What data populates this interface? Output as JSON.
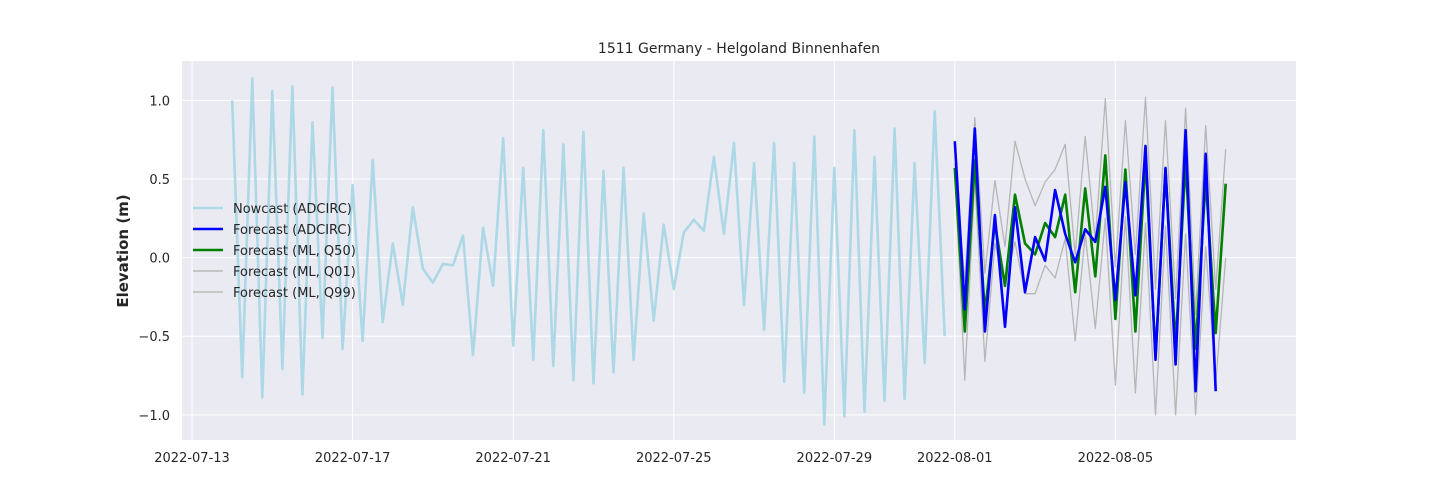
{
  "chart_data": {
    "type": "line",
    "title": "1511 Germany - Helgoland Binnenhafen",
    "xlabel": "",
    "ylabel": "Elevation (m)",
    "x_ticks": [
      {
        "date": "2022-07-13",
        "label": "2022-07-13"
      },
      {
        "date": "2022-07-17",
        "label": "2022-07-17"
      },
      {
        "date": "2022-07-21",
        "label": "2022-07-21"
      },
      {
        "date": "2022-07-25",
        "label": "2022-07-25"
      },
      {
        "date": "2022-07-29",
        "label": "2022-07-29"
      },
      {
        "date": "2022-08-01",
        "label": "2022-08-01"
      },
      {
        "date": "2022-08-05",
        "label": "2022-08-05"
      }
    ],
    "y_ticks": [
      1.0,
      0.5,
      0.0,
      -0.5,
      -1.0
    ],
    "y_tick_labels": [
      "1.0",
      "0.5",
      "0.0",
      "−0.5",
      "−1.0"
    ],
    "xlim": [
      "2022-07-12 18:00",
      "2022-08-09 12:00"
    ],
    "ylim": [
      -1.16,
      1.25
    ],
    "grid": true,
    "legend_position": "center-left",
    "colors": {
      "background": "#eaeaf2",
      "grid": "#ffffff",
      "nowcast": "#add8e6",
      "forecast_adcirc": "#0000ff",
      "forecast_q50": "#008000",
      "forecast_band": "#b0b0b0"
    },
    "series": [
      {
        "name": "Nowcast (ADCIRC)",
        "color": "#add8e6",
        "x": [
          "2022-07-14 00:00",
          "2022-07-14 06:00",
          "2022-07-14 12:00",
          "2022-07-14 18:00",
          "2022-07-15 00:00",
          "2022-07-15 06:00",
          "2022-07-15 12:00",
          "2022-07-15 18:00",
          "2022-07-16 00:00",
          "2022-07-16 06:00",
          "2022-07-16 12:00",
          "2022-07-16 18:00",
          "2022-07-17 00:00",
          "2022-07-17 06:00",
          "2022-07-17 12:00",
          "2022-07-17 18:00",
          "2022-07-18 00:00",
          "2022-07-18 06:00",
          "2022-07-18 12:00",
          "2022-07-18 18:00",
          "2022-07-19 00:00",
          "2022-07-19 06:00",
          "2022-07-19 12:00",
          "2022-07-19 18:00",
          "2022-07-20 00:00",
          "2022-07-20 06:00",
          "2022-07-20 12:00",
          "2022-07-20 18:00",
          "2022-07-21 00:00",
          "2022-07-21 06:00",
          "2022-07-21 12:00",
          "2022-07-21 18:00",
          "2022-07-22 00:00",
          "2022-07-22 06:00",
          "2022-07-22 12:00",
          "2022-07-22 18:00",
          "2022-07-23 00:00",
          "2022-07-23 06:00",
          "2022-07-23 12:00",
          "2022-07-23 18:00",
          "2022-07-24 00:00",
          "2022-07-24 06:00",
          "2022-07-24 12:00",
          "2022-07-24 18:00",
          "2022-07-25 00:00",
          "2022-07-25 06:00",
          "2022-07-25 12:00",
          "2022-07-25 18:00",
          "2022-07-26 00:00",
          "2022-07-26 06:00",
          "2022-07-26 12:00",
          "2022-07-26 18:00",
          "2022-07-27 00:00",
          "2022-07-27 06:00",
          "2022-07-27 12:00",
          "2022-07-27 18:00",
          "2022-07-28 00:00",
          "2022-07-28 06:00",
          "2022-07-28 12:00",
          "2022-07-28 18:00",
          "2022-07-29 00:00",
          "2022-07-29 06:00",
          "2022-07-29 12:00",
          "2022-07-29 18:00",
          "2022-07-30 00:00",
          "2022-07-30 06:00",
          "2022-07-30 12:00",
          "2022-07-30 18:00",
          "2022-07-31 00:00",
          "2022-07-31 06:00",
          "2022-07-31 12:00",
          "2022-07-31 18:00"
        ],
        "y": [
          1.0,
          -0.76,
          1.14,
          -0.89,
          1.06,
          -0.71,
          1.09,
          -0.87,
          0.86,
          -0.51,
          1.08,
          -0.58,
          0.46,
          -0.53,
          0.62,
          -0.41,
          0.09,
          -0.3,
          0.32,
          -0.07,
          -0.16,
          -0.04,
          -0.05,
          0.14,
          -0.62,
          0.19,
          -0.18,
          0.76,
          -0.56,
          0.57,
          -0.65,
          0.81,
          -0.69,
          0.72,
          -0.78,
          0.8,
          -0.8,
          0.55,
          -0.73,
          0.57,
          -0.65,
          0.28,
          -0.4,
          0.21,
          -0.2,
          0.16,
          0.24,
          0.17,
          0.64,
          0.15,
          0.73,
          -0.3,
          0.6,
          -0.46,
          0.73,
          -0.79,
          0.6,
          -0.86,
          0.77,
          -1.06,
          0.57,
          -1.01,
          0.81,
          -0.98,
          0.64,
          -0.91,
          0.82,
          -0.9,
          0.6,
          -0.67,
          0.93,
          -0.5
        ]
      },
      {
        "name": "Forecast (ADCIRC)",
        "color": "#0000ff",
        "x": [
          "2022-08-01 00:00",
          "2022-08-01 06:00",
          "2022-08-01 12:00",
          "2022-08-01 18:00",
          "2022-08-02 00:00",
          "2022-08-02 06:00",
          "2022-08-02 12:00",
          "2022-08-02 18:00",
          "2022-08-03 00:00",
          "2022-08-03 06:00",
          "2022-08-03 12:00",
          "2022-08-03 18:00",
          "2022-08-04 00:00",
          "2022-08-04 06:00",
          "2022-08-04 12:00",
          "2022-08-04 18:00",
          "2022-08-05 00:00",
          "2022-08-05 06:00",
          "2022-08-05 12:00",
          "2022-08-05 18:00",
          "2022-08-06 00:00",
          "2022-08-06 06:00",
          "2022-08-06 12:00",
          "2022-08-06 18:00",
          "2022-08-07 00:00",
          "2022-08-07 06:00",
          "2022-08-07 12:00",
          "2022-08-07 18:00"
        ],
        "y": [
          0.74,
          -0.33,
          0.82,
          -0.47,
          0.27,
          -0.44,
          0.32,
          -0.22,
          0.13,
          -0.02,
          0.43,
          0.15,
          -0.03,
          0.18,
          0.1,
          0.45,
          -0.27,
          0.48,
          -0.24,
          0.71,
          -0.65,
          0.57,
          -0.68,
          0.81,
          -0.85,
          0.66,
          -0.85,
          null
        ]
      },
      {
        "name": "Forecast (ML, Q50)",
        "color": "#008000",
        "x": [
          "2022-08-01 00:00",
          "2022-08-01 06:00",
          "2022-08-01 12:00",
          "2022-08-01 18:00",
          "2022-08-02 00:00",
          "2022-08-02 06:00",
          "2022-08-02 12:00",
          "2022-08-02 18:00",
          "2022-08-03 00:00",
          "2022-08-03 06:00",
          "2022-08-03 12:00",
          "2022-08-03 18:00",
          "2022-08-04 00:00",
          "2022-08-04 06:00",
          "2022-08-04 12:00",
          "2022-08-04 18:00",
          "2022-08-05 00:00",
          "2022-08-05 06:00",
          "2022-08-05 12:00",
          "2022-08-05 18:00",
          "2022-08-06 00:00",
          "2022-08-06 06:00",
          "2022-08-06 12:00",
          "2022-08-06 18:00",
          "2022-08-07 00:00",
          "2022-08-07 06:00",
          "2022-08-07 12:00",
          "2022-08-07 18:00"
        ],
        "y": [
          0.57,
          -0.47,
          0.62,
          -0.35,
          0.22,
          -0.18,
          0.4,
          0.09,
          0.02,
          0.22,
          0.13,
          0.4,
          -0.22,
          0.44,
          -0.12,
          0.65,
          -0.39,
          0.56,
          -0.47,
          0.63,
          -0.63,
          0.56,
          -0.56,
          0.61,
          -0.58,
          0.5,
          -0.48,
          0.47
        ]
      },
      {
        "name": "Forecast (ML, Q01)",
        "color": "#b0b0b0",
        "x": [
          "2022-08-01 00:00",
          "2022-08-01 06:00",
          "2022-08-01 12:00",
          "2022-08-01 18:00",
          "2022-08-02 00:00",
          "2022-08-02 06:00",
          "2022-08-02 12:00",
          "2022-08-02 18:00",
          "2022-08-03 00:00",
          "2022-08-03 06:00",
          "2022-08-03 12:00",
          "2022-08-03 18:00",
          "2022-08-04 00:00",
          "2022-08-04 06:00",
          "2022-08-04 12:00",
          "2022-08-04 18:00",
          "2022-08-05 00:00",
          "2022-08-05 06:00",
          "2022-08-05 12:00",
          "2022-08-05 18:00",
          "2022-08-06 00:00",
          "2022-08-06 06:00",
          "2022-08-06 12:00",
          "2022-08-06 18:00",
          "2022-08-07 00:00",
          "2022-08-07 06:00",
          "2022-08-07 12:00",
          "2022-08-07 18:00"
        ],
        "y": [
          0.56,
          -0.78,
          0.5,
          -0.66,
          0.09,
          -0.18,
          0.1,
          -0.23,
          -0.23,
          -0.05,
          -0.13,
          0.12,
          -0.53,
          0.15,
          -0.45,
          0.25,
          -0.81,
          0.26,
          -0.86,
          0.22,
          -1.0,
          0.2,
          -1.0,
          0.15,
          -1.0,
          0.07,
          -0.8,
          0.0
        ]
      },
      {
        "name": "Forecast (ML, Q99)",
        "color": "#b0b0b0",
        "x": [
          "2022-08-01 00:00",
          "2022-08-01 06:00",
          "2022-08-01 12:00",
          "2022-08-01 18:00",
          "2022-08-02 00:00",
          "2022-08-02 06:00",
          "2022-08-02 12:00",
          "2022-08-02 18:00",
          "2022-08-03 00:00",
          "2022-08-03 06:00",
          "2022-08-03 12:00",
          "2022-08-03 18:00",
          "2022-08-04 00:00",
          "2022-08-04 06:00",
          "2022-08-04 12:00",
          "2022-08-04 18:00",
          "2022-08-05 00:00",
          "2022-08-05 06:00",
          "2022-08-05 12:00",
          "2022-08-05 18:00",
          "2022-08-06 00:00",
          "2022-08-06 06:00",
          "2022-08-06 12:00",
          "2022-08-06 18:00",
          "2022-08-07 00:00",
          "2022-08-07 06:00",
          "2022-08-07 12:00",
          "2022-08-07 18:00"
        ],
        "y": [
          0.6,
          -0.15,
          0.89,
          -0.1,
          0.49,
          0.07,
          0.74,
          0.5,
          0.33,
          0.48,
          0.56,
          0.72,
          0.02,
          0.77,
          0.11,
          1.01,
          -0.06,
          0.87,
          0.02,
          1.02,
          -0.2,
          0.87,
          -0.26,
          0.95,
          -0.36,
          0.84,
          -0.2,
          0.69
        ]
      }
    ]
  }
}
